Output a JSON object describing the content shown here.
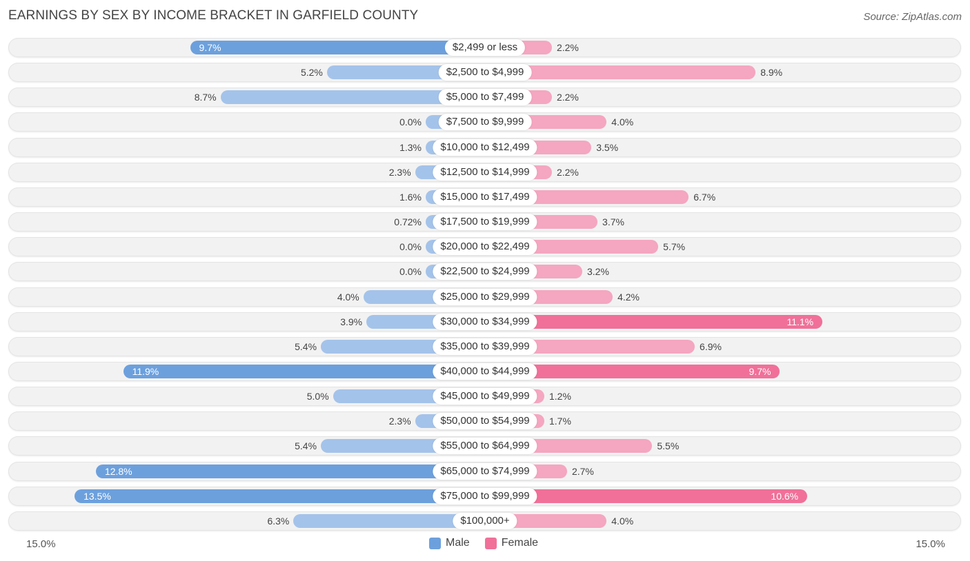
{
  "title": "EARNINGS BY SEX BY INCOME BRACKET IN GARFIELD COUNTY",
  "source": "Source: ZipAtlas.com",
  "colors": {
    "male": "#a4c3ea",
    "male_strong": "#6ca0dd",
    "female": "#f5a6c0",
    "female_strong": "#f07099"
  },
  "legend": {
    "male": "Male",
    "female": "Female"
  },
  "axis": {
    "left_label": "15.0%",
    "right_label": "15.0%"
  },
  "chart_data": {
    "type": "bar",
    "orientation": "horizontal-diverging",
    "title": "EARNINGS BY SEX BY INCOME BRACKET IN GARFIELD COUNTY",
    "xlim": [
      -15.0,
      15.0
    ],
    "unit": "%",
    "categories": [
      "$2,499 or less",
      "$2,500 to $4,999",
      "$5,000 to $7,499",
      "$7,500 to $9,999",
      "$10,000 to $12,499",
      "$12,500 to $14,999",
      "$15,000 to $17,499",
      "$17,500 to $19,999",
      "$20,000 to $22,499",
      "$22,500 to $24,999",
      "$25,000 to $29,999",
      "$30,000 to $34,999",
      "$35,000 to $39,999",
      "$40,000 to $44,999",
      "$45,000 to $49,999",
      "$50,000 to $54,999",
      "$55,000 to $64,999",
      "$65,000 to $74,999",
      "$75,000 to $99,999",
      "$100,000+"
    ],
    "series": [
      {
        "name": "Male",
        "values": [
          9.7,
          5.2,
          8.7,
          0.0,
          1.3,
          2.3,
          1.6,
          0.72,
          0.0,
          0.0,
          4.0,
          3.9,
          5.4,
          11.9,
          5.0,
          2.3,
          5.4,
          12.8,
          13.5,
          6.3
        ],
        "labels": [
          "9.7%",
          "5.2%",
          "8.7%",
          "0.0%",
          "1.3%",
          "2.3%",
          "1.6%",
          "0.72%",
          "0.0%",
          "0.0%",
          "4.0%",
          "3.9%",
          "5.4%",
          "11.9%",
          "5.0%",
          "2.3%",
          "5.4%",
          "12.8%",
          "13.5%",
          "6.3%"
        ]
      },
      {
        "name": "Female",
        "values": [
          2.2,
          8.9,
          2.2,
          4.0,
          3.5,
          2.2,
          6.7,
          3.7,
          5.7,
          3.2,
          4.2,
          11.1,
          6.9,
          9.7,
          1.2,
          1.7,
          5.5,
          2.7,
          10.6,
          4.0
        ],
        "labels": [
          "2.2%",
          "8.9%",
          "2.2%",
          "4.0%",
          "3.5%",
          "2.2%",
          "6.7%",
          "3.7%",
          "5.7%",
          "3.2%",
          "4.2%",
          "11.1%",
          "6.9%",
          "9.7%",
          "1.2%",
          "1.7%",
          "5.5%",
          "2.7%",
          "10.6%",
          "4.0%"
        ]
      }
    ]
  }
}
